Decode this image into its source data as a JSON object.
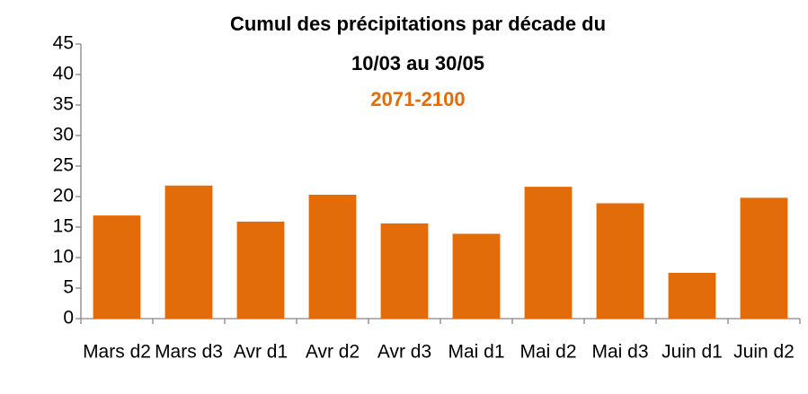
{
  "chart_data": {
    "type": "bar",
    "title": "Cumul des précipitations par décade du 10/03 au 30/05",
    "subtitle": "2071-2100",
    "categories": [
      "Mars d2",
      "Mars d3",
      "Avr d1",
      "Avr d2",
      "Avr d3",
      "Mai d1",
      "Mai d2",
      "Mai d3",
      "Juin d1",
      "Juin d2"
    ],
    "values": [
      16.9,
      21.8,
      15.9,
      20.3,
      15.6,
      13.9,
      21.6,
      18.9,
      7.5,
      19.8
    ],
    "color": "#e36c0a",
    "ylim": [
      0,
      45
    ],
    "yticks": [
      0,
      5,
      10,
      15,
      20,
      25,
      30,
      35,
      40,
      45
    ],
    "grid": false
  }
}
